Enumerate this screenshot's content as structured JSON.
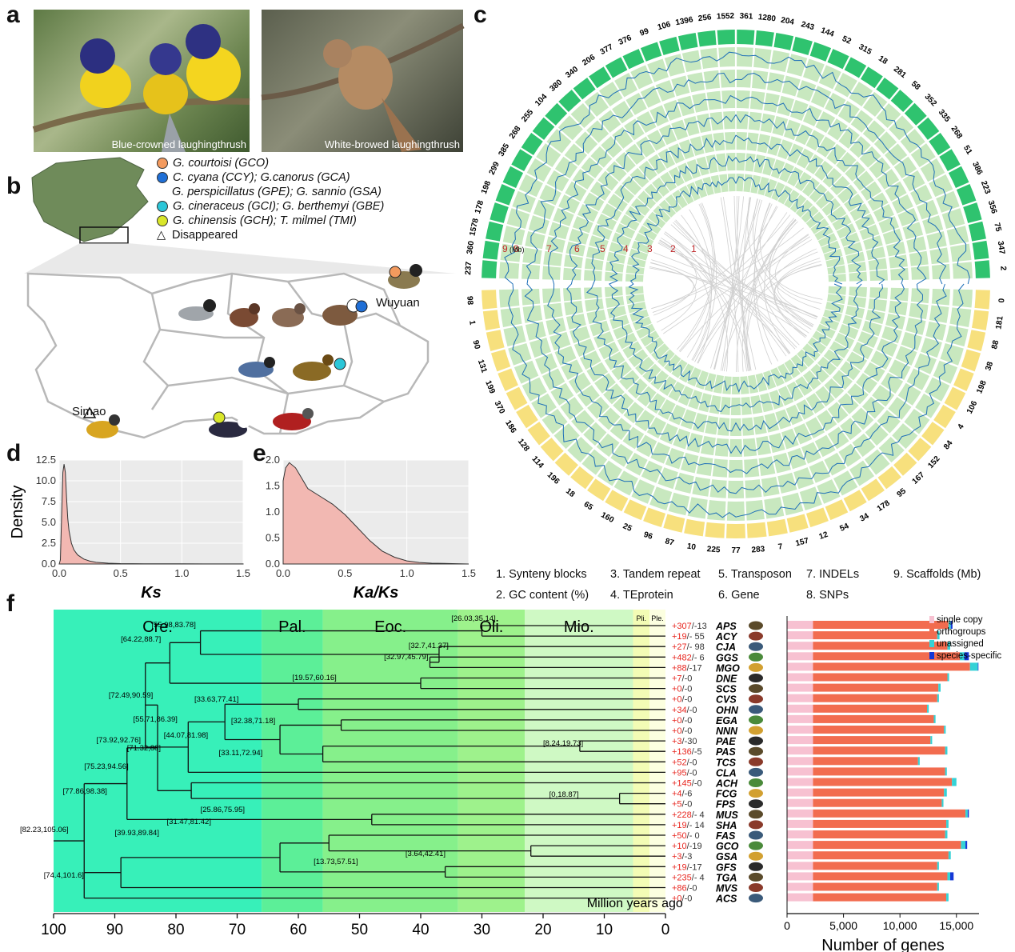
{
  "panel_labels": {
    "a": "a",
    "b": "b",
    "c": "c",
    "d": "d",
    "e": "e",
    "f": "f"
  },
  "photos": [
    {
      "caption": "Blue-crowned laughingthrush"
    },
    {
      "caption": "White-browed laughingthrush"
    }
  ],
  "map_legend": {
    "items": [
      {
        "color": "#f39a5e",
        "text": "G. courtoisi (GCO)"
      },
      {
        "color": "#1f6fd6",
        "text": "C. cyana (CCY); G.canorus (GCA)",
        "text2": "G. perspicillatus (GPE); G. sannio (GSA)"
      },
      {
        "color": "#2cc6d8",
        "text": "G. cineraceus (GCI); G. berthemyi (GBE)"
      },
      {
        "color": "#d9e62a",
        "text": "G. chinensis (GCH); T. milmel (TMI)"
      }
    ],
    "disappeared": "Disappeared",
    "places": {
      "wuyuan": "Wuyuan",
      "simao": "Simao"
    }
  },
  "circos": {
    "track_numbers": [
      "9",
      "(Mb)",
      "8",
      "7",
      "6",
      "5",
      "4",
      "3",
      "2",
      "1"
    ],
    "legend": [
      "1. Synteny blocks",
      "3. Tandem repeat",
      "5. Transposon",
      "7. INDELs",
      "9. Scaffolds (Mb)",
      "2. GC content (%)",
      "4. TEprotein",
      "6. Gene",
      "8. SNPs"
    ],
    "top_labels": [
      "237",
      "360",
      "1578",
      "178",
      "198",
      "299",
      "385",
      "268",
      "255",
      "104",
      "380",
      "340",
      "206",
      "377",
      "376",
      "99",
      "106",
      "1396",
      "256",
      "1552",
      "361",
      "1280",
      "204",
      "243",
      "144",
      "52",
      "315",
      "18",
      "281",
      "58",
      "352",
      "335",
      "268",
      "51",
      "386",
      "223",
      "356",
      "75",
      "347",
      "2"
    ],
    "bottom_labels": [
      "0",
      "181",
      "88",
      "38",
      "198",
      "106",
      "4",
      "84",
      "152",
      "167",
      "95",
      "178",
      "34",
      "54",
      "12",
      "157",
      "7",
      "283",
      "77",
      "225",
      "10",
      "87",
      "96",
      "25",
      "160",
      "65",
      "18",
      "196",
      "114",
      "128",
      "186",
      "370",
      "199",
      "131",
      "90",
      "1",
      "98"
    ],
    "colors": {
      "scaffold_top": "#2fc36f",
      "scaffold_bottom": "#f7e07d",
      "track": "#c8e8bf",
      "signal": "#1e6fb8",
      "synteny": "#d0d0d0"
    }
  },
  "chart_data": [
    {
      "type": "area",
      "xlabel": "Ks",
      "ylabel": "Density",
      "xlim": [
        0,
        1.5
      ],
      "ylim": [
        0,
        12.5
      ],
      "xticks": [
        "0.0",
        "0.5",
        "1.0",
        "1.5"
      ],
      "yticks": [
        "0.0",
        "2.5",
        "5.0",
        "7.5",
        "10.0",
        "12.5"
      ],
      "x": [
        0,
        0.01,
        0.02,
        0.03,
        0.04,
        0.05,
        0.06,
        0.07,
        0.08,
        0.1,
        0.12,
        0.15,
        0.2,
        0.25,
        0.3,
        0.4,
        0.5,
        0.7,
        1.0,
        1.5
      ],
      "y": [
        0,
        0.5,
        6,
        11,
        12,
        11,
        8,
        5.5,
        4,
        2.5,
        1.7,
        1.1,
        0.6,
        0.35,
        0.2,
        0.1,
        0.05,
        0.03,
        0.02,
        0.01
      ]
    },
    {
      "type": "area",
      "xlabel": "Ka/Ks",
      "ylabel": "",
      "xlim": [
        0,
        1.5
      ],
      "ylim": [
        0,
        2.0
      ],
      "xticks": [
        "0.0",
        "0.5",
        "1.0",
        "1.5"
      ],
      "yticks": [
        "0.0",
        "0.5",
        "1.0",
        "1.5",
        "2.0"
      ],
      "x": [
        0,
        0.02,
        0.05,
        0.1,
        0.15,
        0.2,
        0.3,
        0.4,
        0.5,
        0.6,
        0.7,
        0.8,
        0.9,
        1.0,
        1.1,
        1.2,
        1.3,
        1.5
      ],
      "y": [
        1.6,
        1.85,
        1.95,
        1.85,
        1.65,
        1.45,
        1.3,
        1.15,
        0.95,
        0.7,
        0.45,
        0.25,
        0.13,
        0.06,
        0.03,
        0.015,
        0.01,
        0.0
      ]
    },
    {
      "type": "bar",
      "xlabel": "Number of genes",
      "ylabel": "",
      "xlim": [
        0,
        17000
      ],
      "xticks": [
        "0",
        "5,000",
        "10,000",
        "15,000"
      ],
      "categories": [
        "APS",
        "ACY",
        "CJA",
        "GGS",
        "MGO",
        "DNE",
        "SCS",
        "CVS",
        "OHN",
        "EGA",
        "NNN",
        "PAE",
        "PAS",
        "TCS",
        "CLA",
        "ACH",
        "FCG",
        "FPS",
        "MUS",
        "SHA",
        "FAS",
        "GCO",
        "GSA",
        "GFS",
        "TGA",
        "MVS",
        "ACS"
      ],
      "series": [
        {
          "name": "single copy",
          "color": "#f7c1d1",
          "values": [
            2300,
            2300,
            2300,
            2300,
            2300,
            2300,
            2300,
            2300,
            2300,
            2300,
            2300,
            2300,
            2300,
            2300,
            2300,
            2300,
            2300,
            2300,
            2300,
            2300,
            2300,
            2300,
            2300,
            2300,
            2300,
            2300,
            2300
          ]
        },
        {
          "name": "orthogroups",
          "color": "#f26c4f",
          "values": [
            12000,
            11000,
            11900,
            13000,
            13900,
            11900,
            11100,
            11000,
            10100,
            10700,
            11600,
            10400,
            11700,
            9300,
            11700,
            12300,
            11600,
            11400,
            13500,
            11800,
            11700,
            13100,
            12000,
            11000,
            11900,
            11000,
            11800
          ]
        },
        {
          "name": "unassigned",
          "color": "#35d2d6",
          "values": [
            200,
            200,
            250,
            400,
            700,
            150,
            200,
            150,
            150,
            150,
            150,
            150,
            200,
            150,
            150,
            400,
            250,
            150,
            200,
            200,
            200,
            400,
            200,
            150,
            250,
            150,
            200
          ]
        },
        {
          "name": "species-specific",
          "color": "#1437d6",
          "values": [
            150,
            0,
            0,
            400,
            50,
            0,
            0,
            0,
            0,
            0,
            0,
            0,
            0,
            0,
            0,
            0,
            0,
            0,
            100,
            0,
            0,
            150,
            0,
            0,
            300,
            0,
            0
          ]
        }
      ]
    }
  ],
  "tree": {
    "epochs": [
      {
        "label": "Cre.",
        "from": 100,
        "to": 66,
        "color": "#37f0b9"
      },
      {
        "label": "Pal.",
        "from": 66,
        "to": 56,
        "color": "#5cef98"
      },
      {
        "label": "Eoc.",
        "from": 56,
        "to": 33.9,
        "color": "#86f08b"
      },
      {
        "label": "Oli.",
        "from": 33.9,
        "to": 23,
        "color": "#9ef28c"
      },
      {
        "label": "Mio.",
        "from": 23,
        "to": 5.3,
        "color": "#cff9c4"
      },
      {
        "label": "Pli.",
        "from": 5.3,
        "to": 2.6,
        "color": "#f3fcb5"
      },
      {
        "label": "Ple.",
        "from": 2.6,
        "to": 0,
        "color": "#fcffe0"
      }
    ],
    "axis_title": "Million years ago",
    "axis_ticks": [
      "100",
      "90",
      "80",
      "70",
      "60",
      "50",
      "40",
      "30",
      "20",
      "10",
      "0"
    ],
    "taxa": [
      "APS",
      "ACY",
      "CJA",
      "GGS",
      "MGO",
      "DNE",
      "SCS",
      "CVS",
      "OHN",
      "EGA",
      "NNN",
      "PAE",
      "PAS",
      "TCS",
      "CLA",
      "ACH",
      "FCG",
      "FPS",
      "MUS",
      "SHA",
      "FAS",
      "GCO",
      "GSA",
      "GFS",
      "TGA",
      "MVS",
      "ACS"
    ],
    "gains": [
      "+307",
      "+19",
      "+27",
      "+482",
      "+88",
      "+7",
      "+0",
      "+0",
      "+34",
      "+0",
      "+0",
      "+3",
      "+136",
      "+52",
      "+95",
      "+145",
      "+4",
      "+5",
      "+228",
      "+19",
      "+50",
      "+10",
      "+3",
      "+19",
      "+235",
      "+86",
      "+0"
    ],
    "losses": [
      "-13",
      "- 55",
      "- 98",
      "- 6",
      "-17",
      "-0",
      "-0",
      "-0",
      "-0",
      "-0",
      "-0",
      "-30",
      "-5",
      "-0",
      "-0",
      "-0",
      "-6",
      "-0",
      "- 4",
      "- 14",
      "- 0",
      "-19",
      "-3",
      "-17",
      "- 4",
      "-0",
      "-0"
    ],
    "node_labels": [
      "[26.03,35.14]",
      "[55.98,83.78]",
      "[32.7,41.37]",
      "[32.97,45.79]",
      "[64.22,88.7]",
      "[19.57,60.16]",
      "[72.49,90.59]",
      "[33.63,77.41]",
      "[55.71,86.39]",
      "[32.38,71.18]",
      "[73.92,92.76]",
      "[71.32,88]",
      "[44.07,81.98]",
      "[8.24,19.73]",
      "[33.11,72.94]",
      "[75.23,94.56]",
      "[77.86,98.38]",
      "[0,18.87]",
      "[25.86,75.95]",
      "[82.23,105.06]",
      "[31.47,81.42]",
      "[39.93,89.84]",
      "[3.64,42.41]",
      "[13.73,57.51]",
      "[74.4,101.6]"
    ]
  }
}
